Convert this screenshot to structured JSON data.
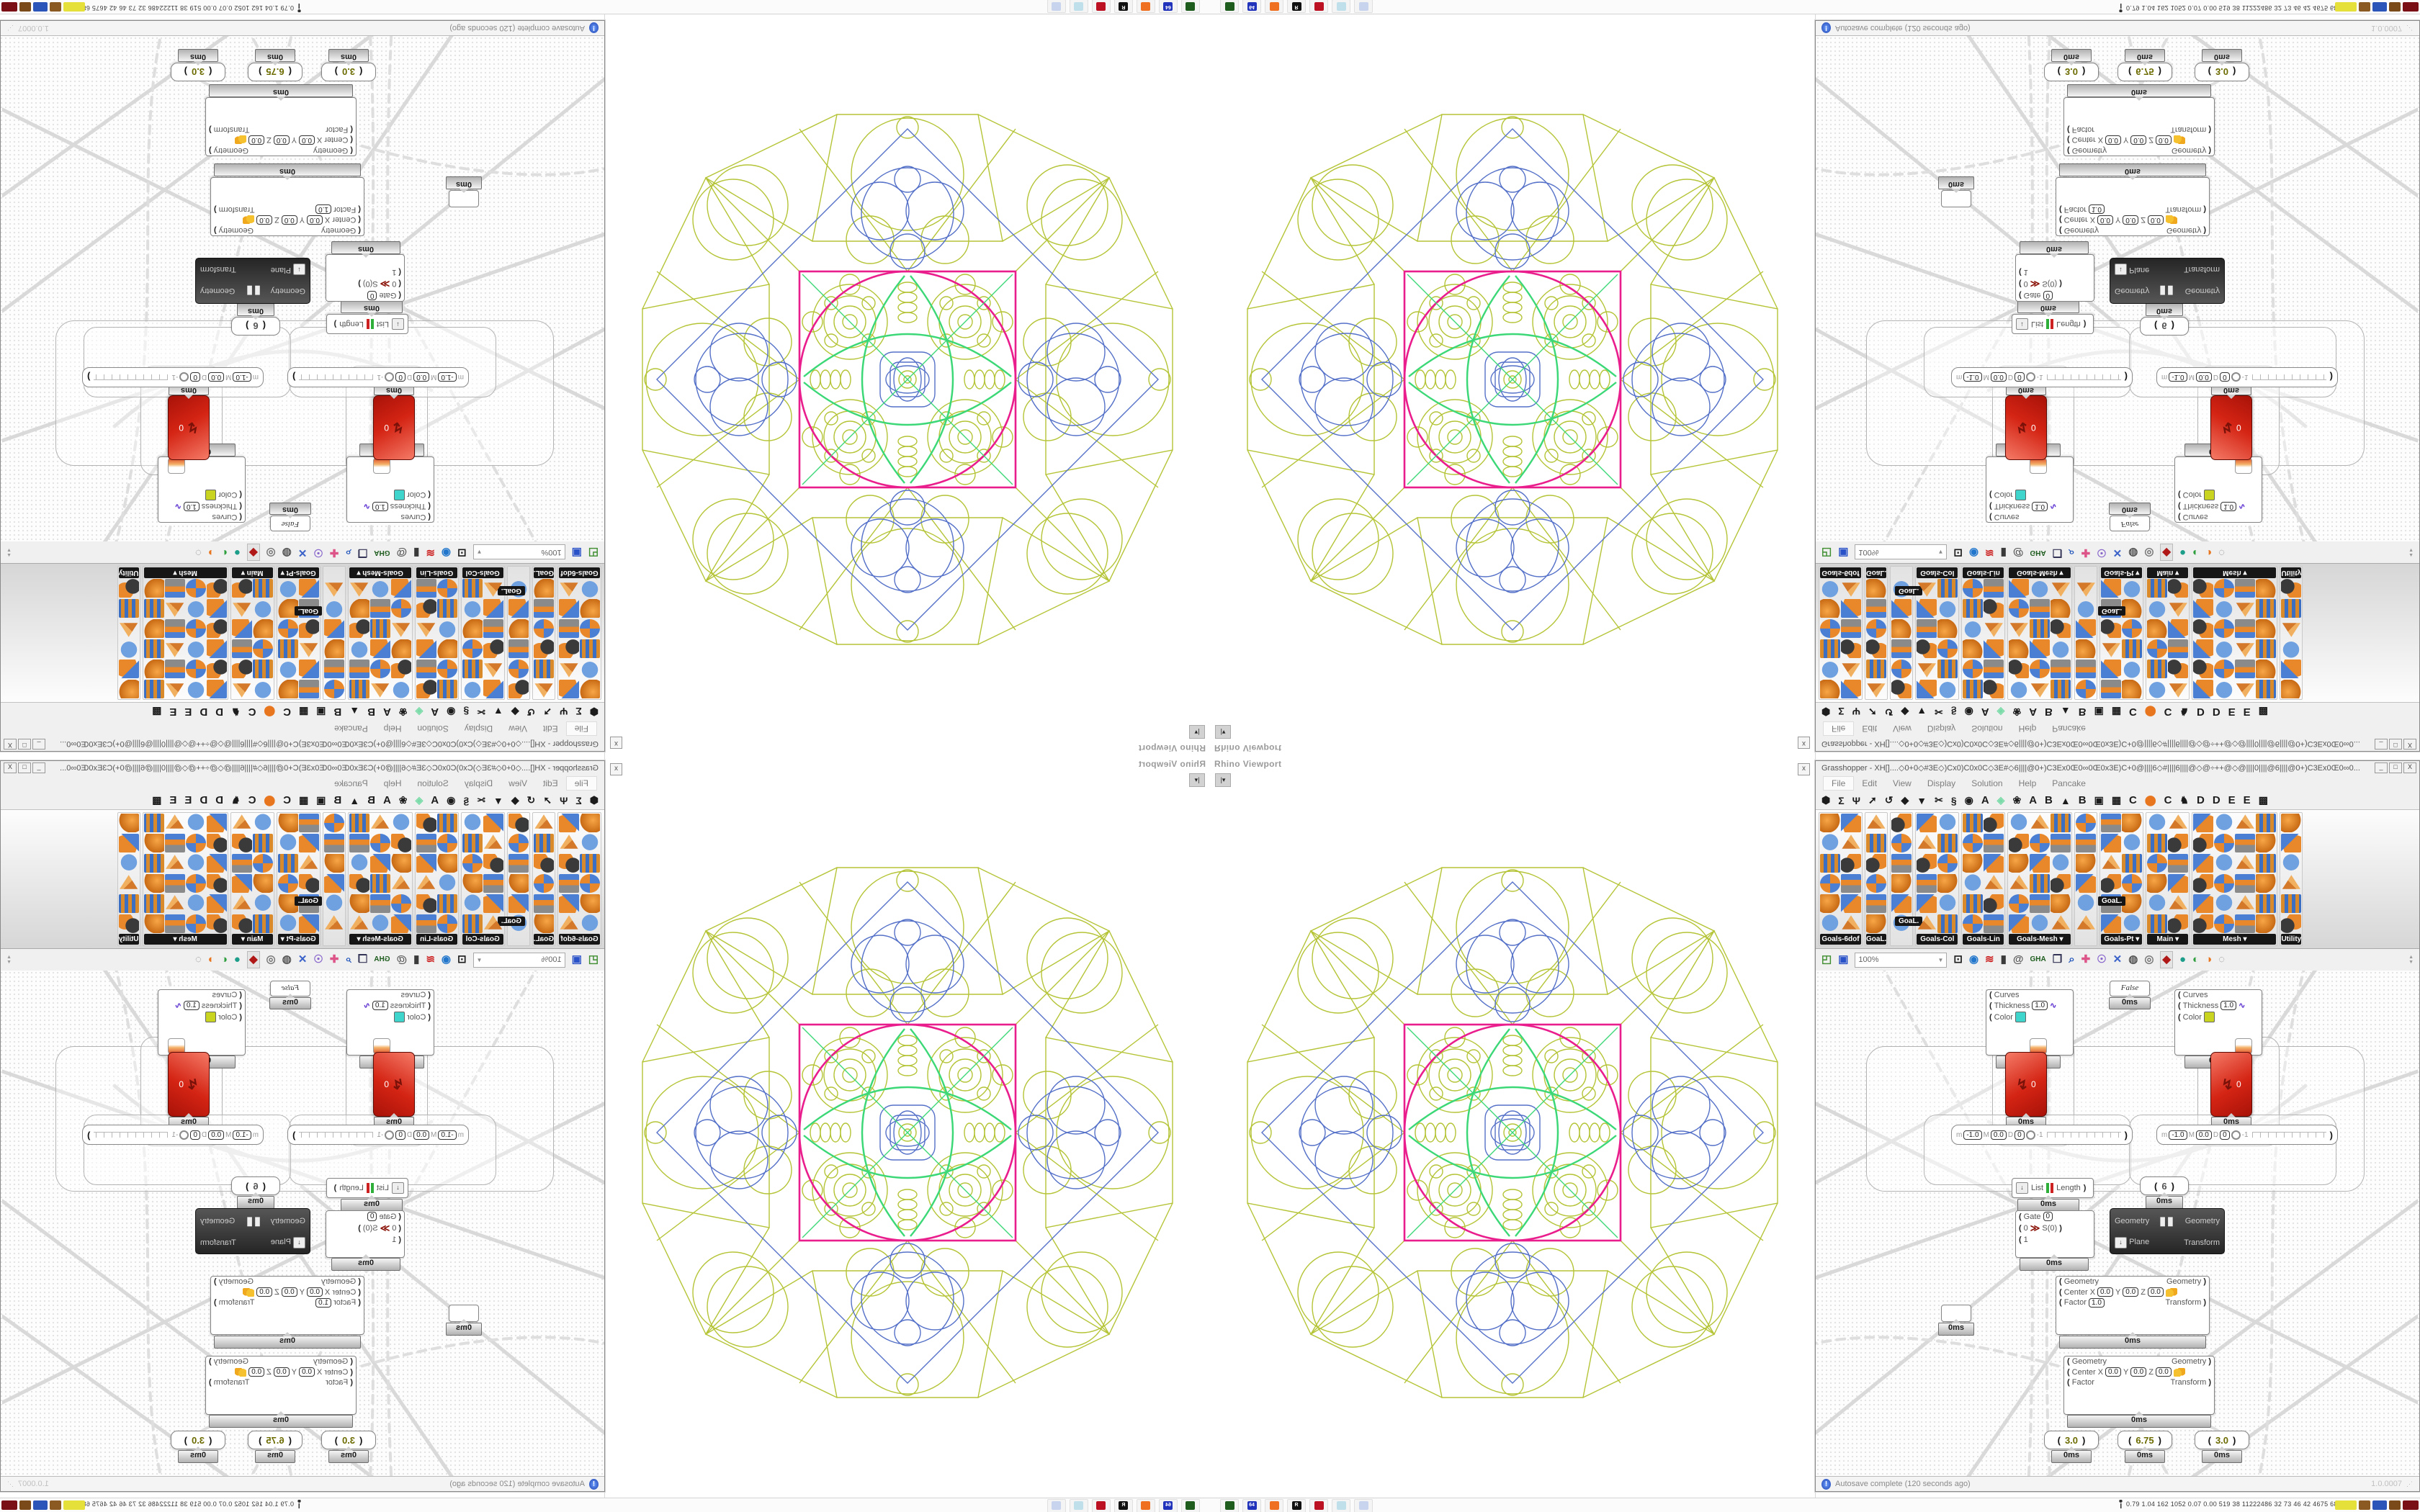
{
  "colors": {
    "pattern_olive": "#b5c437",
    "pattern_blue": "#5571c8",
    "pattern_magenta": "#ea1d8d",
    "pattern_green": "#3cd877",
    "wire": "#d9d9d9",
    "wire_dashed": "#dedede"
  },
  "viewport": {
    "label": "Rhino Viewport",
    "dropdown_glyph": "▾"
  },
  "gh": {
    "close_x": "x",
    "title": "Grasshopper - XH[]....◇0+0◇#3E◇)Cx0)C0x0C◇3E#◇6||||@0+)C3Ex0Œ0∞0Œ0x3E)C+0@||||6◇#||||6||||@◇@÷++@◇@||||0||||@6||||@0+)C3Ex0Œ0∞0...",
    "win_buttons": [
      "_",
      "□",
      "X"
    ],
    "menu": [
      "File",
      "Edit",
      "View",
      "Display",
      "Solution",
      "Help",
      "Pancake"
    ],
    "tabs": [
      {
        "name": "tab-params",
        "glyph": "⬢",
        "kind": "icon"
      },
      {
        "name": "tab-maths",
        "glyph": "Σ",
        "kind": "icon"
      },
      {
        "name": "tab-sets",
        "glyph": "Ψ",
        "kind": "icon"
      },
      {
        "name": "tab-vector",
        "glyph": "➚",
        "kind": "icon"
      },
      {
        "name": "tab-curve",
        "glyph": "↺",
        "kind": "icon"
      },
      {
        "name": "tab-surface",
        "glyph": "◆",
        "kind": "icon"
      },
      {
        "name": "tab-mesh",
        "glyph": "▼",
        "kind": "icon"
      },
      {
        "name": "tab-intersect",
        "glyph": "✂",
        "kind": "icon"
      },
      {
        "name": "tab-transform",
        "glyph": "§",
        "kind": "icon"
      },
      {
        "name": "tab-display",
        "glyph": "◉",
        "kind": "icon"
      },
      {
        "name": "tab-a1",
        "glyph": "A",
        "kind": "letter"
      },
      {
        "name": "tab-leaf",
        "glyph": "◈",
        "kind": "green"
      },
      {
        "name": "tab-flower",
        "glyph": "❀",
        "kind": "icon"
      },
      {
        "name": "tab-a2",
        "glyph": "A",
        "kind": "letter"
      },
      {
        "name": "tab-b1",
        "glyph": "B",
        "kind": "letter"
      },
      {
        "name": "tab-mountain",
        "glyph": "▲",
        "kind": "icon"
      },
      {
        "name": "tab-b2",
        "glyph": "B",
        "kind": "letter"
      },
      {
        "name": "tab-shield",
        "glyph": "▣",
        "kind": "icon"
      },
      {
        "name": "tab-grid",
        "glyph": "▦",
        "kind": "icon"
      },
      {
        "name": "tab-c1",
        "glyph": "C",
        "kind": "letter"
      },
      {
        "name": "tab-ellipse",
        "glyph": "⬤",
        "kind": "accent"
      },
      {
        "name": "tab-c2",
        "glyph": "C",
        "kind": "letter"
      },
      {
        "name": "tab-kangaroo",
        "glyph": "♞",
        "kind": "icon"
      },
      {
        "name": "tab-d1",
        "glyph": "D",
        "kind": "letter"
      },
      {
        "name": "tab-d2",
        "glyph": "D",
        "kind": "letter"
      },
      {
        "name": "tab-e1",
        "glyph": "E",
        "kind": "letter"
      },
      {
        "name": "tab-e2",
        "glyph": "E",
        "kind": "letter"
      },
      {
        "name": "tab-dots",
        "glyph": "▩",
        "kind": "icon"
      }
    ],
    "palette": {
      "groups": [
        {
          "label": "Goals-6dof",
          "cols": 2,
          "arrow": false,
          "seed": 0
        },
        {
          "label": "GoaL.",
          "cols": 1,
          "arrow": false,
          "seed": 3
        },
        {
          "label": "",
          "cols": 1,
          "arrow": false,
          "seed": 5
        },
        {
          "label": "Goals-Col",
          "cols": 2,
          "arrow": false,
          "seed": 1
        },
        {
          "label": "Goals-Lin",
          "cols": 2,
          "arrow": false,
          "seed": 4
        },
        {
          "label": "Goals-Mesh",
          "cols": 3,
          "arrow": true,
          "seed": 2
        },
        {
          "label": "",
          "cols": 1,
          "arrow": false,
          "seed": 6
        },
        {
          "label": "Goals-Pt",
          "cols": 2,
          "arrow": true,
          "seed": 7
        },
        {
          "label": "Main",
          "cols": 2,
          "arrow": true,
          "seed": 2
        },
        {
          "label": "Mesh",
          "cols": 4,
          "arrow": true,
          "seed": 1
        },
        {
          "label": "Utility",
          "cols": 1,
          "arrow": false,
          "seed": 0
        }
      ],
      "floating_chips": [
        "GoaL.",
        "GoaL."
      ]
    },
    "toolbar": {
      "zoom": "100%",
      "icons": [
        {
          "name": "open-file-icon",
          "glyph": "◰",
          "color": "#3e8e2f"
        },
        {
          "name": "save-file-icon",
          "glyph": "▣",
          "color": "#2a52c8"
        },
        {
          "name": "zoom-extents-icon",
          "glyph": "⊡",
          "color": "#1a1a1a"
        },
        {
          "name": "preview-eye-icon",
          "glyph": "◉",
          "color": "#2277cc"
        },
        {
          "name": "draw-flame-icon",
          "glyph": "≋",
          "color": "#cc2222"
        },
        {
          "name": "barrel-icon",
          "glyph": "▮",
          "color": "#3a3a3a"
        },
        {
          "name": "remote-at-icon",
          "glyph": "@",
          "color": "#555555"
        },
        {
          "name": "gha-icon",
          "glyph": "GHA",
          "color": "#1d5c1d"
        },
        {
          "name": "screenshot-icon",
          "glyph": "❒",
          "color": "#333355"
        },
        {
          "name": "finder-icon",
          "glyph": "⌕",
          "color": "#2255bb"
        },
        {
          "name": "package-icon",
          "glyph": "✚",
          "color": "#dd5588"
        },
        {
          "name": "bulb-icon",
          "glyph": "☉",
          "color": "#8866cc"
        },
        {
          "name": "cross-arrows-icon",
          "glyph": "✕",
          "color": "#3a62c8"
        },
        {
          "name": "profiler-icon",
          "glyph": "◍",
          "color": "#555555"
        },
        {
          "name": "rings-icon",
          "glyph": "◎",
          "color": "#777777"
        },
        {
          "name": "gem-icon",
          "glyph": "◆",
          "color": "#b01818",
          "selected": true
        },
        {
          "name": "balloon-teal-icon",
          "glyph": "●",
          "color": "#1d9e8a"
        },
        {
          "name": "sphere-green-icon",
          "glyph": "◐",
          "color": "#2f9e3f"
        },
        {
          "name": "sphere-orange-icon",
          "glyph": "◑",
          "color": "#e8761e"
        },
        {
          "name": "lasso-icon",
          "glyph": "◌",
          "color": "#888888"
        }
      ]
    },
    "status": {
      "autosave": "Autosave complete (120 seconds ago)",
      "version": "1.0.0007",
      "grip": "⋰"
    },
    "nodes": {
      "ms": "0ms",
      "false_toggle": "False",
      "curves": {
        "input": "Curves",
        "thickness": "Thickness",
        "thickness_value": "1.0",
        "color": "Color",
        "squiggle": "∿"
      },
      "curve_colors": {
        "left": "#3fd4cc",
        "right": "#c9d421"
      },
      "red_value": "0",
      "red_glyph": "↯",
      "mslider": {
        "m": "m",
        "m_value": "-1.0",
        "M": "M",
        "M_value": "0.0",
        "D": "D",
        "D_value": "0",
        "knob_label": "-1"
      },
      "list": {
        "label": "List",
        "length": "Length"
      },
      "six": "6",
      "gate": {
        "gate": "Gate",
        "gate_value": "0",
        "in0": "0",
        "in1": "1",
        "glyph": "≫",
        "out": "S(0)"
      },
      "solver": {
        "in1": "Geometry",
        "in2": "Plane",
        "out1": "Geometry",
        "out2": "Transform",
        "pause": "▮▮"
      },
      "scale": {
        "geometry": "Geometry",
        "center": "Center",
        "x": "X",
        "y": "Y",
        "z": "Z",
        "coord_value": "0.0",
        "factor": "Factor",
        "factor_value": "1.0",
        "out1": "Geometry",
        "out2": "Transform"
      },
      "bottom_sliders": [
        "3.0",
        "6.75",
        "3.0"
      ]
    }
  },
  "taskbar": {
    "left_icons": [
      {
        "name": "console-app-icon",
        "color": "#1d5c1d",
        "text": ""
      },
      {
        "name": "floppy-64-icon",
        "color": "#2233bb",
        "text": "64"
      },
      {
        "name": "firefox-icon",
        "color": "#f07022",
        "text": ""
      },
      {
        "name": "rhino-icon",
        "color": "#111111",
        "text": "R"
      },
      {
        "name": "red-badge-icon",
        "color": "#bb1122",
        "text": ""
      },
      {
        "name": "notepad-icon",
        "color": "#bfe0ea",
        "text": ""
      },
      {
        "name": "calculator-icon",
        "color": "#c8d4ee",
        "text": ""
      }
    ],
    "coords": "0.79 1.04 162 1052 0.07 0.00 519 38 11222486 32 73 46 42 4675 6848",
    "right_icons": [
      {
        "name": "tray-yellow-icon",
        "color": "#e6e03a",
        "width": 30
      },
      {
        "name": "tray-brown-icon",
        "color": "#8a5a22",
        "width": 16
      },
      {
        "name": "tray-blue-icon",
        "color": "#2b55b8",
        "width": 20
      },
      {
        "name": "tray-brown2-icon",
        "color": "#7a4a18",
        "width": 16
      },
      {
        "name": "tray-darkred-icon",
        "color": "#7a1016",
        "width": 22
      }
    ]
  }
}
